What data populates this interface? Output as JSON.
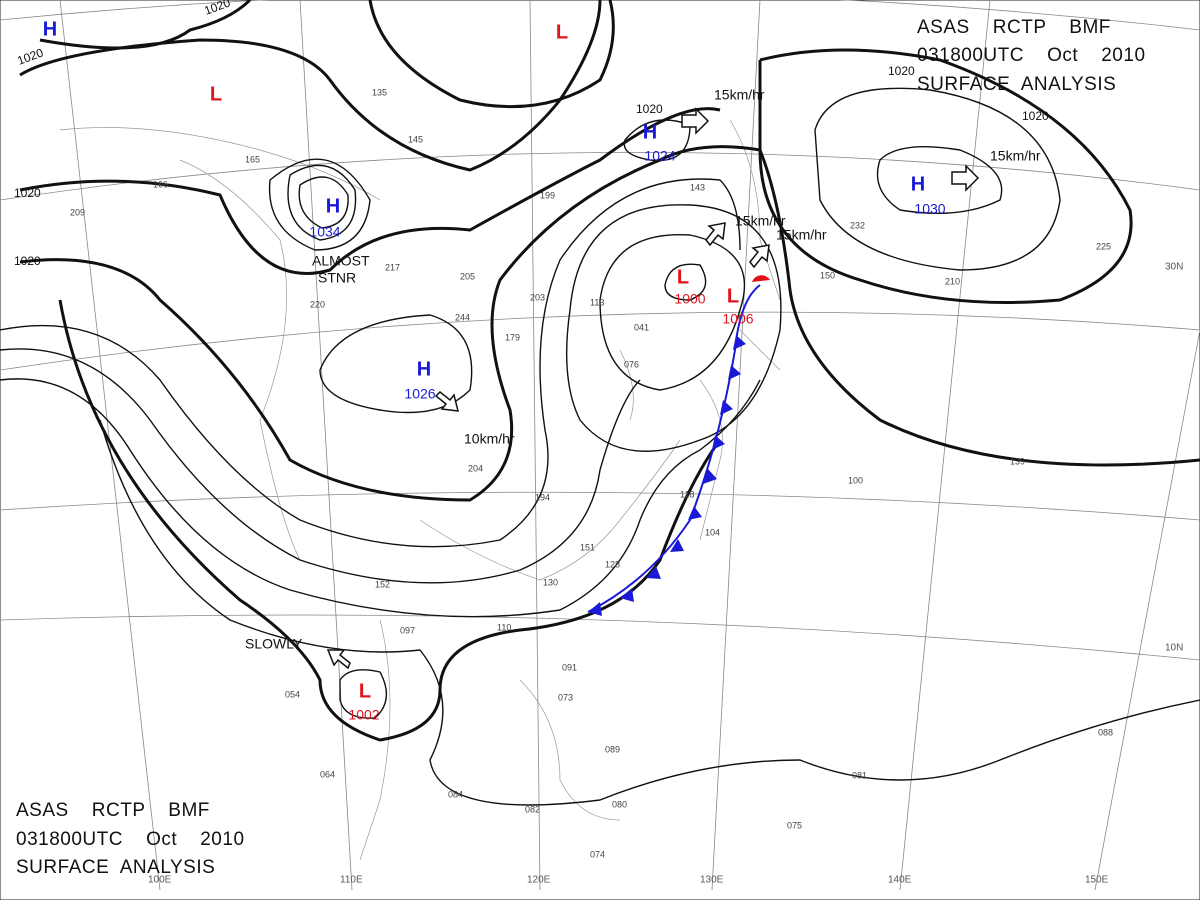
{
  "header_top": {
    "lines": [
      "ASAS    RCTP    BMF",
      "031800UTC    Oct    2010",
      "SURFACE  ANALYSIS"
    ]
  },
  "header_bottom": {
    "lines": [
      "ASAS    RCTP    BMF",
      "031800UTC    Oct    2010",
      "SURFACE  ANALYSIS"
    ]
  },
  "centers": [
    {
      "type": "H",
      "pressure": "1034"
    },
    {
      "type": "H",
      "pressure": "1024"
    },
    {
      "type": "H",
      "pressure": "1030"
    },
    {
      "type": "H",
      "pressure": "1026"
    },
    {
      "type": "L",
      "pressure": "1000"
    },
    {
      "type": "L",
      "pressure": "1006"
    },
    {
      "type": "L",
      "pressure": "1002"
    },
    {
      "type": "H"
    },
    {
      "type": "L"
    },
    {
      "type": "L"
    }
  ],
  "isobar_labels": [
    "1020",
    "1020",
    "1020",
    "1020",
    "1020",
    "1020",
    "1020"
  ],
  "motions": [
    "15km/hr",
    "15km/hr",
    "15km/hr",
    "15km/hr",
    "10km/hr",
    "SLOWLY",
    "ALMOST",
    "STNR"
  ],
  "grid_labels": [
    "100E",
    "110E",
    "120E",
    "130E",
    "140E",
    "150E",
    "30N",
    "10N"
  ],
  "stations": [
    "135",
    "145",
    "165",
    "166",
    "209",
    "203",
    "220",
    "217",
    "205",
    "199",
    "244",
    "179",
    "194",
    "204",
    "152",
    "097",
    "110",
    "054",
    "064",
    "084",
    "082",
    "074",
    "089",
    "080",
    "100",
    "139",
    "088",
    "081",
    "075",
    "232",
    "225",
    "210",
    "150",
    "143",
    "113",
    "041",
    "076",
    "118",
    "104",
    "151",
    "128",
    "130",
    "091",
    "073"
  ]
}
